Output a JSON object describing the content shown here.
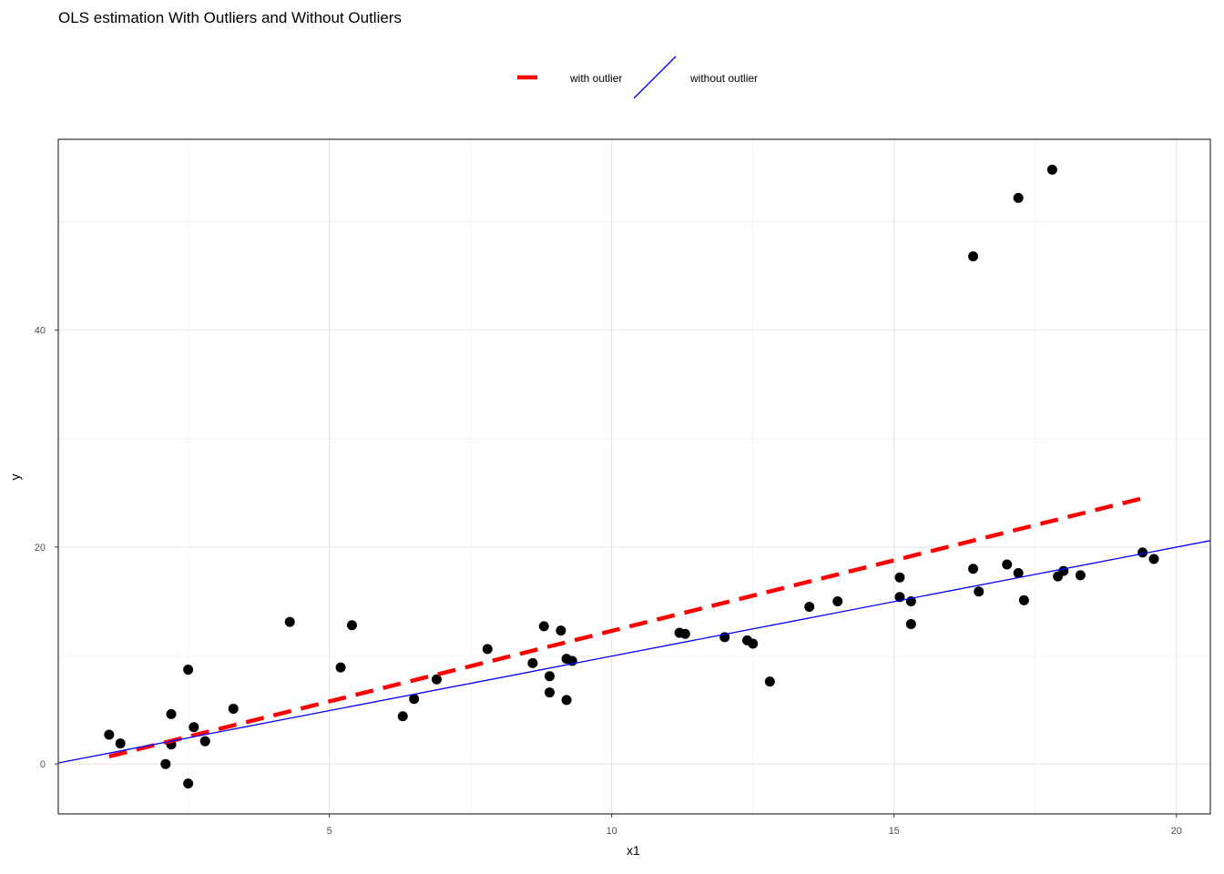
{
  "chart_data": {
    "type": "scatter",
    "title": "OLS estimation With Outliers and Without Outliers",
    "xlabel": "x1",
    "ylabel": "y",
    "xlim": [
      0.2,
      20.6
    ],
    "ylim": [
      -4.6,
      57.6
    ],
    "xticks": [
      5,
      10,
      15,
      20
    ],
    "yticks": [
      0,
      20,
      40
    ],
    "grid": true,
    "legend_position": "top-center",
    "points": [
      {
        "x": 1.1,
        "y": 2.7
      },
      {
        "x": 1.3,
        "y": 1.9
      },
      {
        "x": 2.1,
        "y": 0.0
      },
      {
        "x": 2.2,
        "y": 4.6
      },
      {
        "x": 2.2,
        "y": 1.8
      },
      {
        "x": 2.5,
        "y": 8.7
      },
      {
        "x": 2.5,
        "y": -1.8
      },
      {
        "x": 2.6,
        "y": 3.4
      },
      {
        "x": 2.8,
        "y": 2.1
      },
      {
        "x": 3.3,
        "y": 5.1
      },
      {
        "x": 4.3,
        "y": 13.1
      },
      {
        "x": 5.2,
        "y": 8.9
      },
      {
        "x": 5.4,
        "y": 12.8
      },
      {
        "x": 6.3,
        "y": 4.4
      },
      {
        "x": 6.5,
        "y": 6.0
      },
      {
        "x": 6.9,
        "y": 7.8
      },
      {
        "x": 7.8,
        "y": 10.6
      },
      {
        "x": 8.6,
        "y": 9.3
      },
      {
        "x": 8.8,
        "y": 12.7
      },
      {
        "x": 8.9,
        "y": 8.1
      },
      {
        "x": 8.9,
        "y": 6.6
      },
      {
        "x": 9.1,
        "y": 12.3
      },
      {
        "x": 9.2,
        "y": 9.7
      },
      {
        "x": 9.2,
        "y": 5.9
      },
      {
        "x": 9.3,
        "y": 9.5
      },
      {
        "x": 11.2,
        "y": 12.1
      },
      {
        "x": 11.3,
        "y": 12.0
      },
      {
        "x": 12.0,
        "y": 11.7
      },
      {
        "x": 12.4,
        "y": 11.4
      },
      {
        "x": 12.5,
        "y": 11.1
      },
      {
        "x": 12.8,
        "y": 7.6
      },
      {
        "x": 13.5,
        "y": 14.5
      },
      {
        "x": 14.0,
        "y": 15.0
      },
      {
        "x": 15.1,
        "y": 17.2
      },
      {
        "x": 15.1,
        "y": 15.4
      },
      {
        "x": 15.3,
        "y": 15.0
      },
      {
        "x": 15.3,
        "y": 12.9
      },
      {
        "x": 16.4,
        "y": 18.0
      },
      {
        "x": 16.5,
        "y": 15.9
      },
      {
        "x": 17.0,
        "y": 18.4
      },
      {
        "x": 17.2,
        "y": 17.6
      },
      {
        "x": 17.3,
        "y": 15.1
      },
      {
        "x": 17.9,
        "y": 17.3
      },
      {
        "x": 18.0,
        "y": 17.8
      },
      {
        "x": 18.3,
        "y": 17.4
      },
      {
        "x": 19.4,
        "y": 19.5
      },
      {
        "x": 19.6,
        "y": 18.9
      },
      {
        "x": 16.4,
        "y": 46.8
      },
      {
        "x": 17.2,
        "y": 52.2
      },
      {
        "x": 17.8,
        "y": 54.8
      }
    ],
    "series": [
      {
        "name": "with outlier",
        "style": "dashed",
        "color": "#ff0000",
        "x": [
          1.1,
          19.4
        ],
        "y": [
          0.7,
          24.5
        ]
      },
      {
        "name": "without outlier",
        "style": "solid",
        "color": "#0000ff",
        "x": [
          0.2,
          20.6
        ],
        "y": [
          0.1,
          20.6
        ]
      }
    ]
  }
}
